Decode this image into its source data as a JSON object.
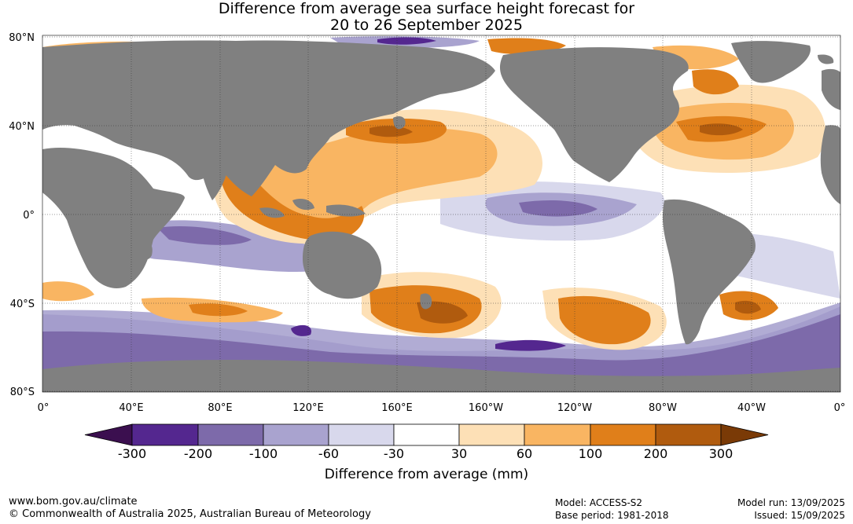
{
  "title": {
    "line1": "Difference from average sea surface height forecast for",
    "line2": "20 to 26 September 2025"
  },
  "map": {
    "lat_ticks": [
      "80°N",
      "40°N",
      "0°",
      "40°S",
      "80°S"
    ],
    "lon_ticks": [
      "0°",
      "40°E",
      "80°E",
      "120°E",
      "160°E",
      "160°W",
      "120°W",
      "80°W",
      "40°W",
      "0°"
    ],
    "land_color": "#808080",
    "ocean_base_color": "#ffffff"
  },
  "colorbar": {
    "title": "Difference from average (mm)",
    "labels": [
      "-300",
      "-200",
      "-100",
      "-60",
      "-30",
      "30",
      "60",
      "100",
      "200",
      "300"
    ],
    "colors": [
      "#3b0f4f",
      "#54278f",
      "#7d6aaa",
      "#a9a3cf",
      "#d8d8ec",
      "#ffffff",
      "#fde0b6",
      "#f9b562",
      "#e07f1a",
      "#b05b0e",
      "#7a3a06"
    ]
  },
  "footer": {
    "url": "www.bom.gov.au/climate",
    "copyright": "© Commonwealth of Australia 2025, Australian Bureau of Meteorology",
    "model": "Model: ACCESS-S2",
    "base_period": "Base period: 1981-2018",
    "model_run": "Model run: 13/09/2025",
    "issued": "Issued: 15/09/2025"
  }
}
